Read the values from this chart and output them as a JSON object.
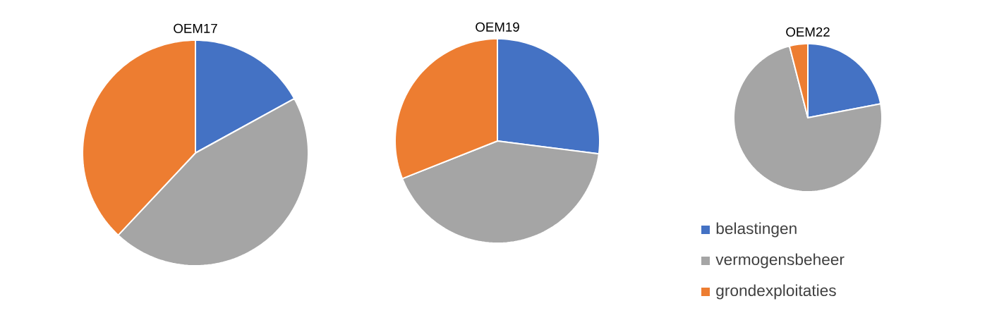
{
  "chart_data": [
    {
      "type": "pie",
      "title": "OEM17",
      "categories": [
        null,
        null,
        null
      ],
      "values": [
        17,
        45,
        38
      ],
      "colors": [
        "#4472c4",
        "#a5a5a5",
        "#ed7d31"
      ],
      "legend": false
    },
    {
      "type": "pie",
      "title": "OEM19",
      "categories": [
        null,
        null,
        null
      ],
      "values": [
        27,
        42,
        31
      ],
      "colors": [
        "#4472c4",
        "#a5a5a5",
        "#ed7d31"
      ],
      "legend": false
    },
    {
      "type": "pie",
      "title": "OEM22",
      "categories": [
        "belastingen",
        "vermogensbeheer",
        "grondexploitaties"
      ],
      "values": [
        22,
        74,
        4
      ],
      "colors": [
        "#4472c4",
        "#a5a5a5",
        "#ed7d31"
      ],
      "legend": "bottom"
    }
  ]
}
